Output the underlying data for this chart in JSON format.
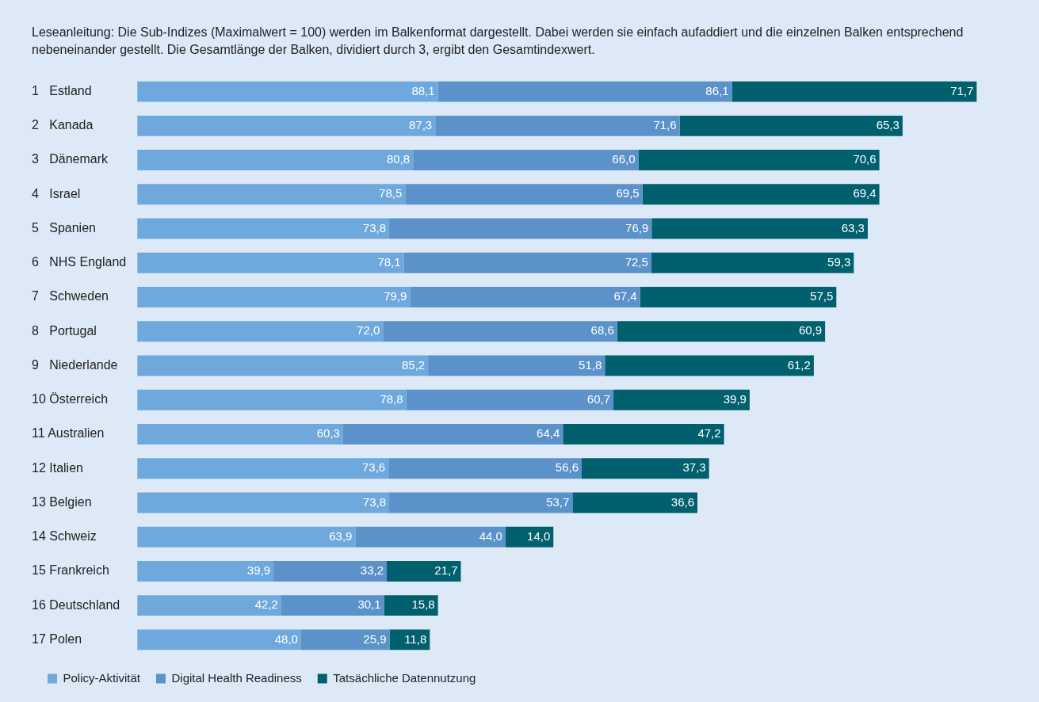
{
  "chart_data": {
    "type": "bar",
    "orientation": "horizontal",
    "stacked": true,
    "legend": "bottom left",
    "title": "Leseanleitung: Die Sub-Indizes (Maximalwert = 100) werden im Balkenformat dargestellt. Dabei werden sie einfach aufaddiert und die einzelnen Balken entsprechend nebeneinander gestellt. Die Gesamtlänge der Balken, dividiert durch 3, ergibt den Gesamtindexwert.",
    "categories": [
      "1   Estland",
      "2   Kanada",
      "3   Dänemark",
      "4   Israel",
      "5   Spanien",
      "6   NHS England",
      "7   Schweden",
      "8   Portugal",
      "9   Niederlande",
      "10 Österreich",
      "11 Australien",
      "12 Italien",
      "13 Belgien",
      "14 Schweiz",
      "15 Frankreich",
      "16 Deutschland",
      "17 Polen"
    ],
    "series": [
      {
        "name": "Policy-Aktivität",
        "color": "#6fa8dc",
        "values": [
          88.1,
          87.3,
          80.8,
          78.5,
          73.8,
          78.1,
          79.9,
          72.0,
          85.2,
          78.8,
          60.3,
          73.6,
          73.8,
          63.9,
          39.9,
          42.2,
          48.0
        ],
        "value_labels": [
          "88,1",
          "87,3",
          "80,8",
          "78,5",
          "73,8",
          "78,1",
          "79,9",
          "72,0",
          "85,2",
          "78,8",
          "60,3",
          "73,6",
          "73,8",
          "63,9",
          "39,9",
          "42,2",
          "48,0"
        ]
      },
      {
        "name": "Digital Health Readiness",
        "color": "#5b92c9",
        "values": [
          86.1,
          71.6,
          66.0,
          69.5,
          76.9,
          72.5,
          67.4,
          68.6,
          51.8,
          60.7,
          64.4,
          56.6,
          53.7,
          44.0,
          33.2,
          30.1,
          25.9
        ],
        "value_labels": [
          "86,1",
          "71,6",
          "66,0",
          "69,5",
          "76,9",
          "72,5",
          "67,4",
          "68,6",
          "51,8",
          "60,7",
          "64,4",
          "56,6",
          "53,7",
          "44,0",
          "33,2",
          "30,1",
          "25,9"
        ]
      },
      {
        "name": "Tatsächliche Datennutzung",
        "color": "#00606e",
        "values": [
          71.7,
          65.3,
          70.6,
          69.4,
          63.3,
          59.3,
          57.5,
          60.9,
          61.2,
          39.9,
          47.2,
          37.3,
          36.6,
          14.0,
          21.7,
          15.8,
          11.8
        ],
        "value_labels": [
          "71,7",
          "65,3",
          "70,6",
          "69,4",
          "63,3",
          "59,3",
          "57,5",
          "60,9",
          "61,2",
          "39,9",
          "47,2",
          "37,3",
          "36,6",
          "14,0",
          "21,7",
          "15,8",
          "11,8"
        ]
      }
    ]
  }
}
